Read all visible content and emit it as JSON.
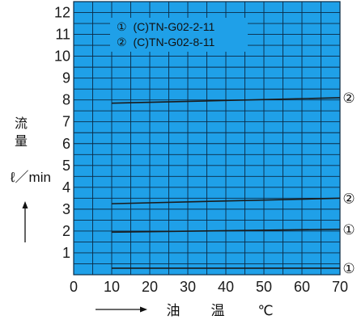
{
  "chart_data": {
    "type": "line",
    "x_ticks": [
      "0",
      "10",
      "20",
      "30",
      "40",
      "50",
      "60",
      "70"
    ],
    "y_ticks": [
      "1",
      "2",
      "3",
      "4",
      "5",
      "6",
      "7",
      "8",
      "9",
      "10",
      "11",
      "12"
    ],
    "xlim": [
      0,
      70
    ],
    "ylim": [
      0,
      12.5
    ],
    "grid": true,
    "colors": {
      "plot_bg": "#1fa0e8",
      "grid": "#0b2a44",
      "line": "#1a1a1a"
    },
    "xlabel_chars": [
      "油",
      "温",
      "℃"
    ],
    "ylabel_chars": [
      "流",
      "量"
    ],
    "ylabel_unit": "ℓ／min",
    "legend": [
      {
        "marker": "①",
        "label": "(C)TN-G02-2-11"
      },
      {
        "marker": "②",
        "label": "(C)TN-G02-8-11"
      }
    ],
    "series": [
      {
        "marker": "②",
        "x": [
          10,
          70
        ],
        "y": [
          7.85,
          8.1
        ]
      },
      {
        "marker": "②",
        "x": [
          10,
          70
        ],
        "y": [
          3.25,
          3.5
        ]
      },
      {
        "marker": "①",
        "x": [
          10,
          70
        ],
        "y": [
          1.95,
          2.08
        ]
      },
      {
        "marker": "①",
        "x": [
          10,
          70
        ],
        "y": [
          0.3,
          0.3
        ]
      }
    ]
  }
}
